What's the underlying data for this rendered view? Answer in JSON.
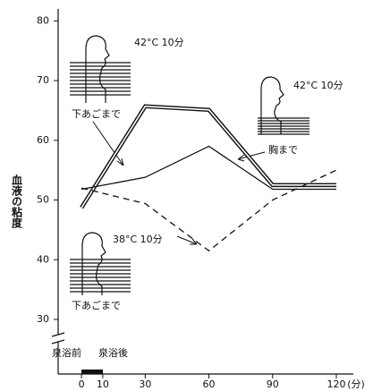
{
  "chart_data": {
    "type": "line",
    "y_label": "血液の粘度",
    "x_unit": "(分)",
    "x": [
      0,
      30,
      60,
      90,
      120
    ],
    "series": [
      {
        "color": "#111111",
        "style": "double",
        "values": [
          48.7,
          65.7,
          65.1,
          52.5,
          52.5
        ]
      },
      {
        "color": "#111111",
        "style": "solid",
        "values": [
          51.8,
          53.8,
          59,
          51.8,
          51.8
        ]
      },
      {
        "color": "#111111",
        "style": "dashed",
        "values": [
          52,
          49.4,
          41.5,
          50,
          55
        ]
      }
    ],
    "xlim": [
      -11,
      128
    ],
    "xticks": [
      0,
      10,
      30,
      60,
      90,
      120
    ],
    "ylim": [
      27,
      82
    ],
    "yticks": [
      30,
      40,
      50,
      60,
      70,
      80
    ],
    "annotations": [
      "42°C 10分",
      "下あごまで",
      "42°C 10分",
      "胸まで",
      "38°C 10分",
      "下あごまで",
      "泉浴前",
      "泉浴後"
    ]
  }
}
